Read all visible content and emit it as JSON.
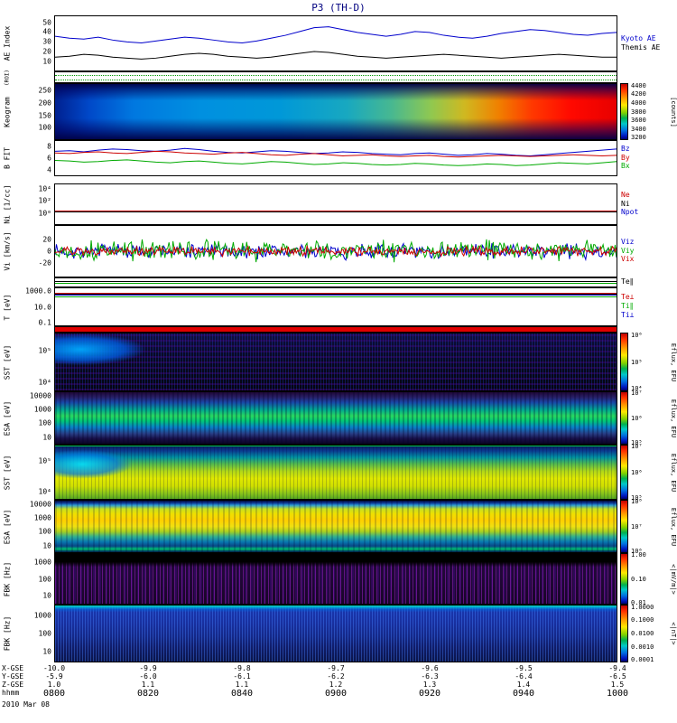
{
  "title": "P3 (TH-D)",
  "date_label": "2010 Mar 08",
  "time_label": "hhmm",
  "xaxis": {
    "ticks": [
      "0800",
      "0820",
      "0840",
      "0900",
      "0920",
      "0940",
      "1000"
    ],
    "rows": [
      {
        "label": "X-GSE",
        "values": [
          "-10.0",
          "-9.9",
          "-9.8",
          "-9.7",
          "-9.6",
          "-9.5",
          "-9.4"
        ]
      },
      {
        "label": "Y-GSE",
        "values": [
          "-5.9",
          "-6.0",
          "-6.1",
          "-6.2",
          "-6.3",
          "-6.4",
          "-6.5"
        ]
      },
      {
        "label": "Z-GSE",
        "values": [
          "1.0",
          "1.1",
          "1.1",
          "1.2",
          "1.3",
          "1.4",
          "1.5"
        ]
      }
    ]
  },
  "chart_data": {
    "type": "multi-panel-timeseries",
    "time_range": [
      "0800",
      "1000"
    ],
    "panels": {
      "ae": {
        "ylabel": "AE Index",
        "ylim": [
          0,
          57
        ],
        "yticks": [
          50,
          40,
          30,
          20,
          10
        ],
        "series": [
          {
            "name": "Kyoto AE",
            "color": "#0000cc",
            "values": [
              36,
              34,
              33,
              35,
              32,
              30,
              29,
              31,
              33,
              35,
              34,
              32,
              30,
              29,
              31,
              34,
              37,
              41,
              45,
              46,
              43,
              40,
              38,
              36,
              38,
              41,
              40,
              37,
              35,
              34,
              36,
              39,
              41,
              43,
              42,
              40,
              38,
              37,
              39,
              40
            ]
          },
          {
            "name": "Themis AE",
            "color": "#000000",
            "values": [
              14,
              15,
              17,
              16,
              14,
              13,
              12,
              13,
              15,
              17,
              18,
              17,
              15,
              14,
              13,
              14,
              16,
              18,
              20,
              19,
              17,
              15,
              14,
              13,
              14,
              15,
              16,
              17,
              16,
              15,
              14,
              13,
              14,
              15,
              16,
              17,
              16,
              15,
              14,
              14
            ]
          }
        ],
        "right_labels": [
          {
            "text": "Kyoto AE",
            "color": "#0000cc"
          },
          {
            "text": "Themis AE",
            "color": "#000000"
          }
        ]
      },
      "roi": {
        "ylabel": "(ROI)",
        "hlines": [
          {
            "f": 0.3,
            "color": "#009900",
            "style": "dotted"
          },
          {
            "f": 0.72,
            "color": "#009900",
            "style": "dotted"
          }
        ]
      },
      "keogram": {
        "ylabel": "Keogram",
        "ylim": [
          50,
          280
        ],
        "yticks": [
          250,
          200,
          150,
          100
        ],
        "colorbar": {
          "ticks": [
            "4400",
            "4200",
            "4000",
            "3800",
            "3600",
            "3400",
            "3200"
          ],
          "label": "[counts]"
        }
      },
      "bfit": {
        "ylabel": "B FIT",
        "ylim": [
          3,
          9
        ],
        "yticks": [
          8,
          6,
          4
        ],
        "series": [
          {
            "name": "Bz",
            "color": "#0000cc",
            "values": [
              7.2,
              7.3,
              7.1,
              7.4,
              7.6,
              7.5,
              7.3,
              7.2,
              7.4,
              7.7,
              7.5,
              7.2,
              7.0,
              6.9,
              7.1,
              7.3,
              7.2,
              7.0,
              6.8,
              6.9,
              7.1,
              7.0,
              6.8,
              6.7,
              6.6,
              6.8,
              6.9,
              6.7,
              6.5,
              6.6,
              6.8,
              6.7,
              6.5,
              6.4,
              6.6,
              6.8,
              7.0,
              7.2,
              7.4,
              7.6
            ]
          },
          {
            "name": "By",
            "color": "#cc0000",
            "values": [
              6.9,
              6.8,
              7.0,
              7.1,
              6.9,
              6.8,
              7.0,
              7.2,
              7.1,
              6.9,
              6.8,
              6.7,
              6.9,
              7.0,
              6.8,
              6.6,
              6.5,
              6.7,
              6.8,
              6.6,
              6.4,
              6.5,
              6.6,
              6.4,
              6.3,
              6.4,
              6.5,
              6.3,
              6.2,
              6.3,
              6.4,
              6.5,
              6.4,
              6.3,
              6.4,
              6.5,
              6.6,
              6.5,
              6.4,
              6.5
            ]
          },
          {
            "name": "Bx",
            "color": "#00aa00",
            "values": [
              5.6,
              5.5,
              5.3,
              5.4,
              5.6,
              5.7,
              5.5,
              5.3,
              5.2,
              5.4,
              5.5,
              5.3,
              5.1,
              5.0,
              5.2,
              5.4,
              5.3,
              5.1,
              4.9,
              5.0,
              5.2,
              5.1,
              4.9,
              4.8,
              4.9,
              5.1,
              5.0,
              4.8,
              4.7,
              4.8,
              5.0,
              4.9,
              4.7,
              4.8,
              5.0,
              5.2,
              5.1,
              5.0,
              5.2,
              5.4
            ]
          }
        ],
        "right_labels": [
          {
            "text": "Bz",
            "color": "#0000cc"
          },
          {
            "text": "By",
            "color": "#cc0000"
          },
          {
            "text": "Bx",
            "color": "#00aa00"
          }
        ]
      },
      "ni": {
        "ylabel": "Ni [1/cc]",
        "yticks": [
          {
            "t": "10⁴",
            "f": 0.12
          },
          {
            "t": "10²",
            "f": 0.42
          },
          {
            "t": "10⁰",
            "f": 0.72
          }
        ],
        "hlines": [
          {
            "f": 0.66,
            "color": "#cc0000",
            "style": "solid"
          },
          {
            "f": 0.69,
            "color": "#000000",
            "style": "solid"
          }
        ],
        "right_labels": [
          {
            "text": "Ne",
            "color": "#cc0000"
          },
          {
            "text": "Ni",
            "color": "#000000"
          },
          {
            "text": "Npot",
            "color": "#0000cc"
          }
        ]
      },
      "vi": {
        "ylabel": "Vi [km/s]",
        "ylim": [
          -45,
          45
        ],
        "yticks": [
          20,
          0,
          -20
        ],
        "series": [
          {
            "name": "Viz",
            "color": "#0000cc",
            "noise": {
              "base": 0,
              "amp": 16,
              "seed": 7,
              "n": 420
            }
          },
          {
            "name": "Viy",
            "color": "#00aa00",
            "noise": {
              "base": 1,
              "amp": 22,
              "seed": 13,
              "n": 420
            }
          },
          {
            "name": "Vix",
            "color": "#cc0000",
            "noise": {
              "base": 0,
              "amp": 10,
              "seed": 29,
              "n": 420
            }
          }
        ],
        "right_labels": [
          {
            "text": "Viz",
            "color": "#0000cc"
          },
          {
            "text": "Viy",
            "color": "#00aa00"
          },
          {
            "text": "Vix",
            "color": "#cc0000"
          }
        ]
      },
      "testrip": {
        "ylabel": "",
        "hlines": [
          {
            "f": 0.3,
            "color": "#000000",
            "style": "solid"
          },
          {
            "f": 0.55,
            "color": "#00aa00",
            "style": "solid"
          }
        ],
        "right_labels": [
          {
            "text": "Te∥",
            "color": "#000000"
          }
        ]
      },
      "temp": {
        "ylabel": "T [eV]",
        "yticks": [
          {
            "t": "1000.0",
            "f": 0.1
          },
          {
            "t": "10.0",
            "f": 0.5
          },
          {
            "t": "0.1",
            "f": 0.9
          }
        ],
        "hlines": [
          {
            "f": 0.12,
            "color": "#cc0000",
            "style": "solid"
          },
          {
            "f": 0.15,
            "color": "#000000",
            "style": "solid"
          },
          {
            "f": 0.17,
            "color": "#0000cc",
            "style": "solid"
          },
          {
            "f": 0.22,
            "color": "#00aa00",
            "style": "solid"
          }
        ],
        "right_labels": [
          {
            "text": "Te⊥",
            "color": "#cc0000"
          },
          {
            "text": "Ti∥",
            "color": "#00aa00"
          },
          {
            "text": "Ti⊥",
            "color": "#0000cc"
          }
        ]
      },
      "redbar": {
        "ylabel": ""
      },
      "sst_ion": {
        "ylabel": "SST [eV]",
        "yticks": [
          {
            "t": "10⁵",
            "f": 0.3
          },
          {
            "t": "10⁴",
            "f": 0.85
          }
        ],
        "colorbar": {
          "ticks": [
            "10⁶",
            "10⁵",
            "10⁴"
          ],
          "label": "Eflux, EFU"
        }
      },
      "esa_ion": {
        "ylabel": "ESA [eV]",
        "yticks": [
          {
            "t": "10000",
            "f": 0.08
          },
          {
            "t": "1000",
            "f": 0.34
          },
          {
            "t": "100",
            "f": 0.6
          },
          {
            "t": "10",
            "f": 0.86
          }
        ],
        "colorbar": {
          "ticks": [
            "10⁷",
            "10⁶",
            "10⁵"
          ],
          "label": "Eflux, EFU"
        }
      },
      "sst_el": {
        "ylabel": "SST [eV]",
        "yticks": [
          {
            "t": "10⁵",
            "f": 0.3
          },
          {
            "t": "10⁴",
            "f": 0.85
          }
        ],
        "colorbar": {
          "ticks": [
            "10⁷",
            "10⁶",
            "10⁵"
          ],
          "label": "Eflux, EFU"
        }
      },
      "esa_el": {
        "ylabel": "ESA [eV]",
        "yticks": [
          {
            "t": "10000",
            "f": 0.08
          },
          {
            "t": "1000",
            "f": 0.34
          },
          {
            "t": "100",
            "f": 0.6
          },
          {
            "t": "10",
            "f": 0.86
          }
        ],
        "colorbar": {
          "ticks": [
            "10⁸",
            "10⁷",
            "10⁶"
          ],
          "label": "Eflux, EFU"
        }
      },
      "fbk_e": {
        "ylabel": "FBK [Hz]",
        "yticks": [
          {
            "t": "1000",
            "f": 0.18
          },
          {
            "t": "100",
            "f": 0.5
          },
          {
            "t": "10",
            "f": 0.82
          }
        ],
        "colorbar": {
          "ticks": [
            "1.00",
            "0.10",
            "0.01"
          ],
          "label": "<|mV/m|>"
        }
      },
      "fbk_b": {
        "ylabel": "FBK [Hz]",
        "yticks": [
          {
            "t": "1000",
            "f": 0.18
          },
          {
            "t": "100",
            "f": 0.5
          },
          {
            "t": "10",
            "f": 0.82
          }
        ],
        "colorbar": {
          "ticks": [
            "1.0000",
            "0.1000",
            "0.0100",
            "0.0010",
            "0.0001"
          ],
          "label": "<|nT|>"
        }
      }
    }
  }
}
